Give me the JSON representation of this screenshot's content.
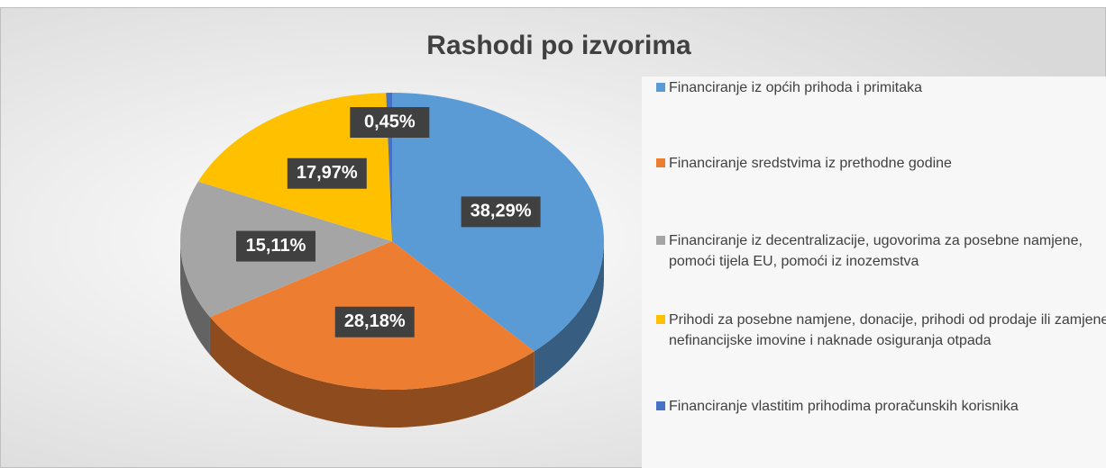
{
  "chart_data": {
    "type": "pie",
    "title": "Rashodi po izvorima",
    "categories": [
      "Financiranje iz općih prihoda i primitaka",
      "Financiranje sredstvima iz prethodne godine",
      "Financiranje iz decentralizacije, ugovorima za posebne namjene, pomoći tijela EU, pomoći iz inozemstva",
      "Prihodi za posebne namjene, donacije, prihodi od prodaje ili zamjene nefinancijske imovine i naknade osiguranja otpada",
      "Financiranje vlastitim prihodima proračunskih korisnika"
    ],
    "values": [
      38.29,
      28.18,
      15.11,
      17.97,
      0.45
    ],
    "value_labels": [
      "38,29%",
      "28,18%",
      "15,11%",
      "17,97%",
      "0,45%"
    ],
    "colors": [
      "#5b9bd5",
      "#ed7d31",
      "#a5a5a5",
      "#ffc000",
      "#4472c4"
    ],
    "legend": "right"
  }
}
